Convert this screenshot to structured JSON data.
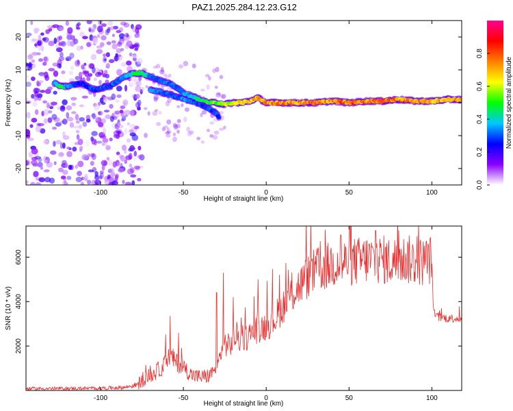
{
  "figure": {
    "title": "PAZ1.2025.284.12.23.G12"
  },
  "chart_data": [
    {
      "type": "heatmap",
      "title": "PAZ1.2025.284.12.23.G12",
      "xlabel": "Height of straight line (km)",
      "ylabel": "Frequency (Hz)",
      "xlim": [
        -145,
        118
      ],
      "ylim": [
        -25,
        25
      ],
      "xticks": [
        -100,
        -50,
        0,
        50,
        100
      ],
      "yticks": [
        -20,
        -10,
        0,
        10,
        20
      ],
      "colorbar": {
        "label": "Normalized spectral amplitude",
        "range": [
          0,
          1
        ],
        "ticks": [
          0.0,
          0.2,
          0.4,
          0.6,
          0.8
        ],
        "tick_labels": [
          "0.0",
          "0.2",
          "0.4",
          "0.6",
          "0.8"
        ],
        "colormap": [
          "#ffffff",
          "#8a00ff",
          "#0000ff",
          "#00c8ff",
          "#00ff00",
          "#ffff00",
          "#ff7f00",
          "#ff0000",
          "#ff0090"
        ]
      },
      "ridge": {
        "x": [
          -128,
          -124,
          -120,
          -112,
          -104,
          -95,
          -85,
          -80,
          -75,
          -70,
          -65,
          -60,
          -55,
          -50,
          -45,
          -40,
          -35,
          -30,
          -25,
          -20,
          -15,
          -10,
          -5,
          0,
          10,
          20,
          30,
          40,
          50,
          60,
          70,
          80,
          90,
          100,
          110,
          118
        ],
        "y": [
          6,
          5,
          5,
          6,
          4,
          5,
          8,
          9,
          9,
          8,
          7,
          6,
          5,
          3,
          2,
          1,
          0,
          0,
          -0.5,
          0,
          0,
          0.5,
          1.5,
          0,
          0,
          0,
          0,
          0.5,
          0,
          0.5,
          0.5,
          1,
          0.5,
          0.5,
          1,
          1
        ],
        "amp": [
          0.3,
          0.5,
          0.35,
          0.25,
          0.3,
          0.3,
          0.35,
          0.45,
          0.5,
          0.35,
          0.3,
          0.35,
          0.3,
          0.35,
          0.4,
          0.45,
          0.5,
          0.55,
          0.6,
          0.6,
          0.65,
          0.7,
          0.7,
          0.75,
          0.75,
          0.75,
          0.8,
          0.75,
          0.8,
          0.75,
          0.8,
          0.75,
          0.75,
          0.7,
          0.7,
          0.7
        ]
      },
      "secondary_ridge": {
        "x": [
          -70,
          -62,
          -55,
          -48,
          -42,
          -36,
          -30,
          -28
        ],
        "y": [
          4,
          3,
          2,
          1,
          0,
          -1.5,
          -3,
          -5
        ],
        "amp": [
          0.35,
          0.3,
          0.3,
          0.35,
          0.3,
          0.3,
          0.3,
          0.25
        ]
      },
      "noise_region": {
        "x": [
          -145,
          -75
        ],
        "y": [
          -25,
          25
        ],
        "amp_max": 0.2
      }
    },
    {
      "type": "line",
      "xlabel": "Height of straight line (km)",
      "ylabel": "SNR (10 * v/v)",
      "xlim": [
        -145,
        118
      ],
      "ylim": [
        0,
        7400
      ],
      "xticks": [
        -100,
        -50,
        0,
        50,
        100
      ],
      "yticks": [
        2000,
        4000,
        6000
      ],
      "series": [
        {
          "name": "SNR",
          "color": "#ee2c2c",
          "x": [
            -145,
            -120,
            -100,
            -85,
            -78,
            -72,
            -68,
            -62,
            -58,
            -55,
            -50,
            -45,
            -40,
            -35,
            -30,
            -27,
            -25,
            -22,
            -18,
            -15,
            -10,
            -5,
            0,
            5,
            10,
            15,
            20,
            25,
            30,
            35,
            40,
            45,
            50,
            55,
            60,
            65,
            70,
            75,
            80,
            85,
            90,
            95,
            100,
            101,
            103,
            110,
            118
          ],
          "y": [
            80,
            90,
            100,
            140,
            250,
            600,
            750,
            1100,
            1600,
            1300,
            1050,
            700,
            600,
            650,
            900,
            1800,
            2100,
            2000,
            2500,
            2200,
            2500,
            2800,
            2900,
            3200,
            3800,
            4300,
            4700,
            5100,
            5400,
            5500,
            5700,
            5700,
            5800,
            5800,
            5900,
            5900,
            5900,
            5800,
            5900,
            5900,
            5800,
            5800,
            5900,
            3500,
            3300,
            3250,
            3250
          ],
          "spikes": [
            {
              "x": -58,
              "y": 3350
            },
            {
              "x": -53,
              "y": 2600
            },
            {
              "x": -30,
              "y": 4400
            },
            {
              "x": -26,
              "y": 5300
            },
            {
              "x": -20,
              "y": 4200
            },
            {
              "x": -5,
              "y": 5000
            },
            {
              "x": 8,
              "y": 5200
            },
            {
              "x": 45,
              "y": 7000
            },
            {
              "x": 66,
              "y": 7200
            },
            {
              "x": 80,
              "y": 7200
            }
          ]
        }
      ]
    }
  ]
}
